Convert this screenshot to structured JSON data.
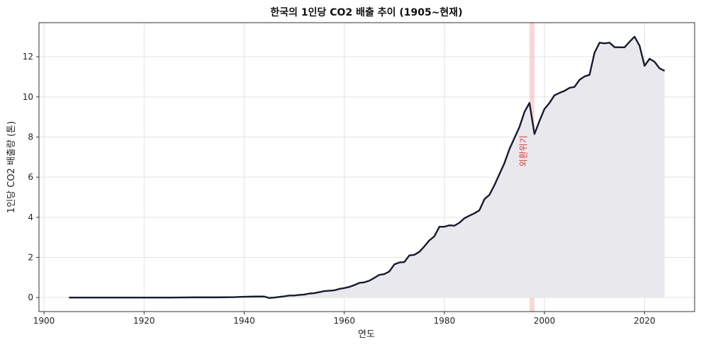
{
  "chart_data": {
    "type": "area",
    "title": "한국의 1인당 CO2 배출 추이 (1905~현재)",
    "xlabel": "연도",
    "ylabel": "1인당 CO2 배출량 (톤)",
    "xlim": [
      1899,
      2030
    ],
    "ylim": [
      -0.7,
      13.7
    ],
    "xticks": [
      1900,
      1920,
      1940,
      1960,
      1980,
      2000,
      2020
    ],
    "yticks": [
      0,
      2,
      4,
      6,
      8,
      10,
      12
    ],
    "grid": true,
    "line_color": "#161b2e",
    "fill_color": "#e9e9ed",
    "x": [
      1905,
      1910,
      1915,
      1920,
      1925,
      1930,
      1935,
      1938,
      1940,
      1942,
      1944,
      1945,
      1946,
      1947,
      1948,
      1949,
      1950,
      1951,
      1952,
      1953,
      1954,
      1955,
      1956,
      1957,
      1958,
      1959,
      1960,
      1961,
      1962,
      1963,
      1964,
      1965,
      1966,
      1967,
      1968,
      1969,
      1970,
      1971,
      1972,
      1973,
      1974,
      1975,
      1976,
      1977,
      1978,
      1979,
      1980,
      1981,
      1982,
      1983,
      1984,
      1985,
      1986,
      1987,
      1988,
      1989,
      1990,
      1991,
      1992,
      1993,
      1994,
      1995,
      1996,
      1997,
      1998,
      1999,
      2000,
      2001,
      2002,
      2003,
      2004,
      2005,
      2006,
      2007,
      2008,
      2009,
      2010,
      2011,
      2012,
      2013,
      2014,
      2015,
      2016,
      2017,
      2018,
      2019,
      2020,
      2021,
      2022,
      2023,
      2024
    ],
    "values": [
      0.0,
      0.0,
      0.0,
      0.0,
      0.0,
      0.01,
      0.01,
      0.02,
      0.04,
      0.05,
      0.05,
      -0.02,
      0.0,
      0.03,
      0.06,
      0.1,
      0.1,
      0.13,
      0.15,
      0.2,
      0.22,
      0.27,
      0.32,
      0.34,
      0.36,
      0.43,
      0.47,
      0.53,
      0.62,
      0.73,
      0.76,
      0.84,
      0.98,
      1.13,
      1.17,
      1.3,
      1.65,
      1.75,
      1.77,
      2.1,
      2.13,
      2.28,
      2.55,
      2.85,
      3.05,
      3.53,
      3.53,
      3.6,
      3.58,
      3.73,
      3.95,
      4.08,
      4.2,
      4.35,
      4.9,
      5.12,
      5.6,
      6.15,
      6.7,
      7.4,
      7.95,
      8.5,
      9.25,
      9.7,
      8.15,
      8.8,
      9.4,
      9.7,
      10.08,
      10.2,
      10.3,
      10.45,
      10.5,
      10.85,
      11.02,
      11.1,
      12.2,
      12.7,
      12.67,
      12.7,
      12.48,
      12.47,
      12.47,
      12.75,
      13.0,
      12.55,
      11.55,
      11.9,
      11.75,
      11.42,
      11.3
    ],
    "shaded_region": {
      "x_range": [
        1997,
        1998
      ],
      "color": "#f4b6b6"
    },
    "annotation": {
      "text": "외환위기",
      "x": 1996.8,
      "y": 7.3,
      "color": "#d23a3a"
    }
  }
}
